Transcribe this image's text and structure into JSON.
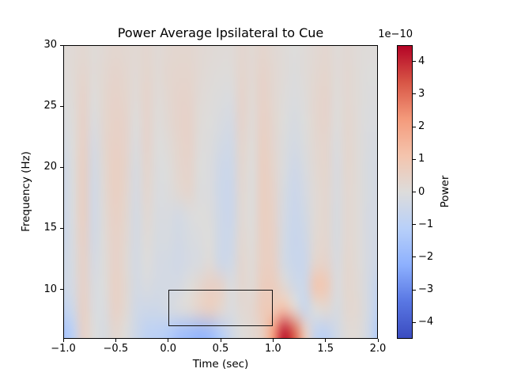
{
  "chart_data": {
    "type": "heatmap",
    "title": "Power Average Ipsilateral to Cue",
    "xlabel": "Time (sec)",
    "ylabel": "Frequency (Hz)",
    "colorbar_label": "Power",
    "offset_text": "1e−10",
    "x_range": [
      -1.0,
      2.0
    ],
    "y_range": [
      5.95,
      30.0
    ],
    "vmin_1e10": -4.5,
    "vmax_1e10": 4.5,
    "x_ticks": [
      {
        "value": -1.0,
        "label": "−1.0"
      },
      {
        "value": -0.5,
        "label": "−0.5"
      },
      {
        "value": 0.0,
        "label": "0.0"
      },
      {
        "value": 0.5,
        "label": "0.5"
      },
      {
        "value": 1.0,
        "label": "1.0"
      },
      {
        "value": 1.5,
        "label": "1.5"
      },
      {
        "value": 2.0,
        "label": "2.0"
      }
    ],
    "y_ticks": [
      {
        "value": 30,
        "label": "30"
      },
      {
        "value": 25,
        "label": "25"
      },
      {
        "value": 20,
        "label": "20"
      },
      {
        "value": 15,
        "label": "15"
      },
      {
        "value": 10,
        "label": "10"
      }
    ],
    "colorbar_ticks": [
      {
        "value": 4,
        "label": "4"
      },
      {
        "value": 3,
        "label": "3"
      },
      {
        "value": 2,
        "label": "2"
      },
      {
        "value": 1,
        "label": "1"
      },
      {
        "value": 0,
        "label": "0"
      },
      {
        "value": -1,
        "label": "−1"
      },
      {
        "value": -2,
        "label": "−2"
      },
      {
        "value": -3,
        "label": "−3"
      },
      {
        "value": -4,
        "label": "−4"
      }
    ],
    "colormap": {
      "name": "coolwarm",
      "stops": [
        "#3b4cc0",
        "#5977e3",
        "#8db0fe",
        "#b8d0f9",
        "#dddcdb",
        "#f4c4ad",
        "#f49a7b",
        "#d85646",
        "#b40426"
      ]
    },
    "roi_rect": {
      "t_start": 0.0,
      "t_end": 1.0,
      "f_start": 7.0,
      "f_end": 10.0,
      "color": "#111111"
    },
    "grid": {
      "t_sec": [
        -1.0,
        -0.9,
        -0.8,
        -0.7,
        -0.6,
        -0.5,
        -0.4,
        -0.3,
        -0.2,
        -0.1,
        0.0,
        0.1,
        0.2,
        0.3,
        0.4,
        0.5,
        0.6,
        0.7,
        0.8,
        0.9,
        1.0,
        1.1,
        1.2,
        1.3,
        1.4,
        1.5,
        1.6,
        1.7,
        1.8,
        1.9,
        2.0
      ],
      "f_hz": [
        30,
        28,
        26,
        24,
        22,
        20,
        18,
        16,
        14,
        12,
        10,
        8,
        6
      ],
      "power_1e10": [
        [
          0.1,
          0.15,
          0.25,
          0.1,
          0.2,
          0.3,
          0.25,
          0.2,
          0.3,
          0.15,
          0.25,
          0.3,
          0.3,
          0.2,
          0.15,
          0.1,
          0.1,
          0.3,
          0.2,
          0.35,
          0.2,
          0.1,
          0.0,
          0.1,
          0.2,
          0.3,
          0.1,
          0.2,
          0.1,
          0.05,
          0.05
        ],
        [
          0.05,
          0.15,
          0.35,
          0.1,
          0.25,
          0.4,
          0.3,
          0.15,
          0.35,
          0.15,
          0.3,
          0.35,
          0.35,
          0.2,
          0.1,
          0.05,
          0.05,
          0.35,
          0.2,
          0.45,
          0.25,
          0.1,
          -0.05,
          0.1,
          0.25,
          0.35,
          0.1,
          0.25,
          0.1,
          0.0,
          0.0
        ],
        [
          -0.05,
          0.1,
          0.45,
          0.0,
          0.3,
          0.45,
          0.35,
          0.1,
          0.4,
          0.1,
          0.25,
          0.4,
          0.4,
          0.15,
          0.05,
          -0.05,
          -0.1,
          0.4,
          0.15,
          0.5,
          0.25,
          0.05,
          -0.1,
          0.05,
          0.3,
          0.4,
          0.05,
          0.25,
          0.1,
          -0.05,
          -0.05
        ],
        [
          -0.15,
          0.05,
          0.5,
          -0.1,
          0.3,
          0.5,
          0.4,
          0.0,
          0.4,
          0.05,
          0.2,
          0.4,
          0.45,
          0.1,
          0.0,
          -0.15,
          -0.25,
          0.4,
          0.1,
          0.55,
          0.3,
          0.0,
          -0.2,
          0.0,
          0.3,
          0.4,
          0.0,
          0.3,
          0.1,
          -0.1,
          -0.1
        ],
        [
          -0.3,
          0.0,
          0.55,
          -0.25,
          0.3,
          0.55,
          0.4,
          -0.1,
          0.4,
          0.0,
          0.1,
          0.35,
          0.45,
          0.05,
          -0.05,
          -0.3,
          -0.4,
          0.35,
          0.05,
          0.6,
          0.3,
          -0.05,
          -0.3,
          -0.05,
          0.25,
          0.35,
          -0.1,
          0.3,
          0.1,
          -0.15,
          -0.2
        ],
        [
          -0.45,
          -0.05,
          0.6,
          -0.35,
          0.25,
          0.6,
          0.4,
          -0.2,
          0.35,
          -0.05,
          0.0,
          0.3,
          0.4,
          0.0,
          -0.1,
          -0.45,
          -0.5,
          0.3,
          0.0,
          0.65,
          0.35,
          -0.1,
          -0.45,
          -0.15,
          0.2,
          0.35,
          -0.15,
          0.3,
          0.1,
          -0.2,
          -0.25
        ],
        [
          -0.5,
          -0.1,
          0.6,
          -0.4,
          0.2,
          0.6,
          0.35,
          -0.25,
          0.3,
          -0.1,
          -0.05,
          0.2,
          0.35,
          -0.05,
          -0.1,
          -0.5,
          -0.55,
          0.25,
          0.0,
          0.65,
          0.4,
          -0.2,
          -0.55,
          -0.25,
          0.15,
          0.3,
          -0.15,
          0.25,
          0.1,
          -0.2,
          -0.3
        ],
        [
          -0.55,
          -0.1,
          0.6,
          -0.4,
          0.15,
          0.55,
          0.3,
          -0.3,
          0.2,
          -0.15,
          -0.15,
          -0.3,
          -0.1,
          0.0,
          -0.05,
          -0.45,
          -0.55,
          0.2,
          0.0,
          0.65,
          0.45,
          -0.25,
          -0.6,
          -0.35,
          0.15,
          0.3,
          -0.2,
          0.25,
          0.1,
          -0.25,
          -0.3
        ],
        [
          -0.55,
          -0.15,
          0.55,
          -0.35,
          0.1,
          0.5,
          0.25,
          -0.3,
          0.1,
          -0.2,
          -0.2,
          -0.35,
          -0.2,
          -0.1,
          0.0,
          -0.45,
          -0.5,
          0.25,
          0.05,
          0.6,
          0.5,
          -0.3,
          -0.65,
          -0.45,
          0.2,
          0.3,
          -0.2,
          0.25,
          0.1,
          -0.25,
          -0.35
        ],
        [
          -0.5,
          -0.2,
          0.5,
          -0.25,
          0.05,
          0.5,
          0.2,
          -0.3,
          0.0,
          -0.25,
          -0.3,
          -0.4,
          -0.25,
          -0.15,
          0.1,
          -0.45,
          -0.4,
          0.3,
          0.1,
          0.6,
          0.55,
          -0.3,
          -0.6,
          -0.55,
          0.35,
          0.4,
          -0.15,
          0.3,
          0.1,
          -0.25,
          -0.5
        ],
        [
          -0.5,
          -0.25,
          0.5,
          -0.15,
          0.0,
          0.55,
          0.25,
          -0.3,
          -0.15,
          -0.3,
          -0.3,
          -0.25,
          0.0,
          0.3,
          0.55,
          0.45,
          -0.1,
          0.3,
          0.15,
          0.7,
          0.7,
          0.2,
          -0.4,
          -0.5,
          1.0,
          0.85,
          -0.1,
          0.3,
          0.15,
          -0.3,
          -0.8
        ],
        [
          -0.9,
          -0.5,
          0.55,
          -0.1,
          -0.1,
          0.5,
          0.2,
          -0.4,
          -0.5,
          -0.5,
          -0.3,
          -0.1,
          0.1,
          0.4,
          0.6,
          0.3,
          -0.1,
          0.2,
          0.3,
          0.8,
          0.9,
          1.2,
          0.3,
          -0.6,
          0.0,
          0.2,
          -0.2,
          0.25,
          0.2,
          -0.3,
          -1.0
        ],
        [
          -1.6,
          -1.0,
          0.5,
          0.0,
          -0.2,
          0.3,
          0.0,
          -0.5,
          -0.9,
          -1.0,
          -1.2,
          -1.6,
          -1.8,
          -2.0,
          -1.8,
          -1.2,
          -0.5,
          0.0,
          0.2,
          0.6,
          2.2,
          4.2,
          3.2,
          0.8,
          -0.8,
          -0.9,
          -0.4,
          0.1,
          0.1,
          -0.4,
          -1.3
        ]
      ]
    }
  }
}
